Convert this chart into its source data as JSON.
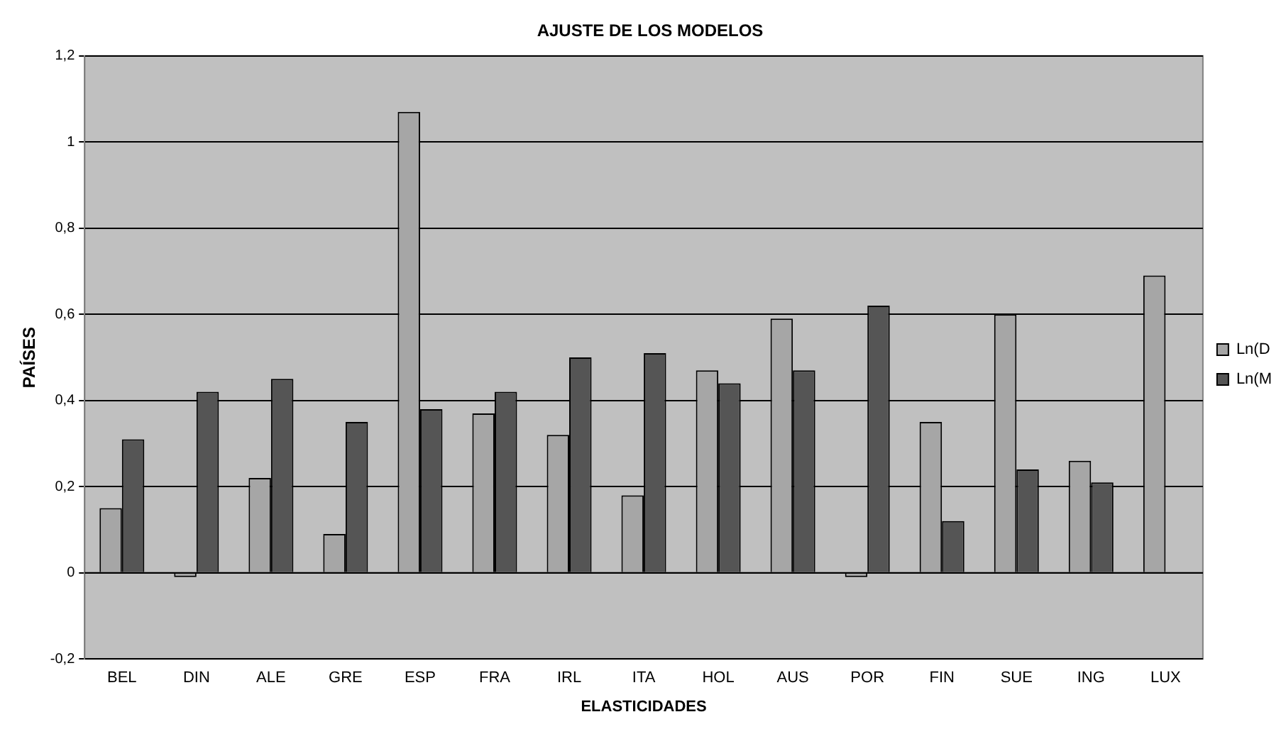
{
  "chart_data": {
    "type": "bar",
    "title": "AJUSTE DE LOS MODELOS",
    "xlabel": "ELASTICIDADES",
    "ylabel": "PAÍSES",
    "categories": [
      "BEL",
      "DIN",
      "ALE",
      "GRE",
      "ESP",
      "FRA",
      "IRL",
      "ITA",
      "HOL",
      "AUS",
      "POR",
      "FIN",
      "SUE",
      "ING",
      "LUX"
    ],
    "series": [
      {
        "name": "Ln(D",
        "color": "#a6a6a6",
        "values": [
          0.15,
          -0.01,
          0.22,
          0.09,
          1.07,
          0.37,
          0.32,
          0.18,
          0.47,
          0.59,
          -0.01,
          0.35,
          0.6,
          0.26,
          0.69
        ]
      },
      {
        "name": "Ln(M",
        "color": "#555555",
        "values": [
          0.31,
          0.42,
          0.45,
          0.35,
          0.38,
          0.42,
          0.5,
          0.51,
          0.44,
          0.47,
          0.62,
          0.12,
          0.24,
          0.21,
          null
        ]
      }
    ],
    "ylim": [
      -0.2,
      1.2
    ],
    "yticks": [
      {
        "value": -0.2,
        "label": "-0,2"
      },
      0,
      {
        "value": 0.2,
        "label": "0,2"
      },
      {
        "value": 0.4,
        "label": "0,4"
      },
      {
        "value": 0.6,
        "label": "0,6"
      },
      {
        "value": 0.8,
        "label": "0,8"
      },
      1,
      {
        "value": 1.2,
        "label": "1,2"
      }
    ],
    "grid": "y",
    "legend": "right"
  }
}
